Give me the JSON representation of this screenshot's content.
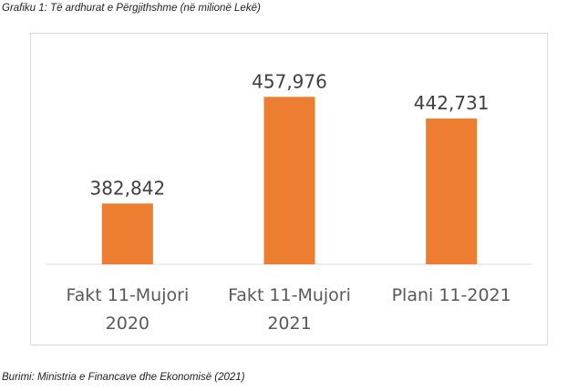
{
  "caption_top": "Grafiku 1: Të ardhurat e Përgjithshme (në milionë Lekë)",
  "caption_bottom": "Burimi: Ministria e Financave dhe Ekonomisë (2021)",
  "colors": {
    "bar": "#ed7d31",
    "axis": "#d9d9d9",
    "text": "#595959",
    "label": "#404040"
  },
  "chart_data": {
    "type": "bar",
    "categories": [
      [
        "Fakt 11-Mujori",
        "2020"
      ],
      [
        "Fakt 11-Mujori",
        "2021"
      ],
      [
        "Plani 11-2021"
      ]
    ],
    "values": [
      382842,
      457976,
      442731
    ],
    "value_labels": [
      "382,842",
      "457,976",
      "442,731"
    ],
    "title": "",
    "xlabel": "",
    "ylabel": "",
    "grid": false,
    "legend": "none"
  }
}
